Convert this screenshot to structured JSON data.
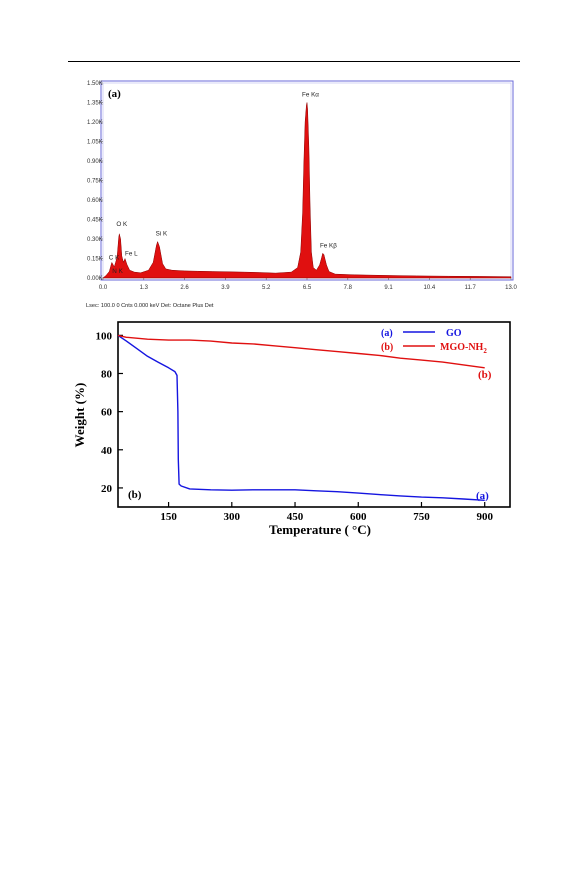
{
  "chart_data": [
    {
      "type": "area",
      "panel_label": "(a)",
      "title": "",
      "xlabel": "",
      "ylabel": "",
      "x_ticks": [
        "0.0",
        "1.3",
        "2.6",
        "3.9",
        "5.2",
        "6.5",
        "7.8",
        "9.1",
        "10.4",
        "11.7",
        "13.0"
      ],
      "y_ticks": [
        "0.00K",
        "0.15K",
        "0.30K",
        "0.45K",
        "0.60K",
        "0.75K",
        "0.90K",
        "1.05K",
        "1.20K",
        "1.35K",
        "1.50K"
      ],
      "xlim": [
        0,
        13.0
      ],
      "ylim": [
        0,
        1500
      ],
      "series": [
        {
          "color": "#e01010",
          "x": [
            0.0,
            0.1,
            0.2,
            0.28,
            0.36,
            0.45,
            0.5,
            0.52,
            0.56,
            0.6,
            0.65,
            0.7,
            0.76,
            0.85,
            1.0,
            1.2,
            1.45,
            1.6,
            1.7,
            1.74,
            1.8,
            1.9,
            2.0,
            2.2,
            2.6,
            3.0,
            3.5,
            4.0,
            4.5,
            5.0,
            5.5,
            6.0,
            6.2,
            6.3,
            6.36,
            6.4,
            6.44,
            6.48,
            6.5,
            6.52,
            6.56,
            6.6,
            6.64,
            6.7,
            6.8,
            6.9,
            6.96,
            7.0,
            7.04,
            7.08,
            7.12,
            7.2,
            7.4,
            8.0,
            9.0,
            10.0,
            11.0,
            12.0,
            13.0
          ],
          "y": [
            0,
            20,
            50,
            120,
            85,
            160,
            310,
            340,
            300,
            170,
            120,
            150,
            105,
            60,
            45,
            40,
            60,
            120,
            250,
            280,
            240,
            110,
            70,
            60,
            55,
            52,
            50,
            48,
            45,
            42,
            38,
            45,
            80,
            200,
            500,
            900,
            1200,
            1330,
            1350,
            1300,
            1000,
            550,
            200,
            80,
            60,
            100,
            150,
            190,
            180,
            140,
            100,
            50,
            30,
            25,
            20,
            16,
            14,
            12,
            10
          ]
        }
      ],
      "annotations": [
        {
          "text": "O  K",
          "x": 0.52,
          "y": 340
        },
        {
          "text": "C  K",
          "x": 0.28,
          "y": 120
        },
        {
          "text": "Fe L",
          "x": 0.7,
          "y": 150
        },
        {
          "text": "N  K",
          "x": 0.36,
          "y": 85
        },
        {
          "text": "Si K",
          "x": 1.74,
          "y": 280
        },
        {
          "text": "Fe Kα",
          "x": 6.5,
          "y": 1350
        },
        {
          "text": "Fe Kβ",
          "x": 7.04,
          "y": 190
        }
      ],
      "footer": "Lsec: 100.0 0 Cnts  0.000 keV Det: Octane Plus Det"
    },
    {
      "type": "line",
      "panel_label": "(b)",
      "title": "",
      "xlabel": "Temperature ( °C)",
      "ylabel": "Weight (%)",
      "x_ticks": [
        150,
        300,
        450,
        600,
        750,
        900
      ],
      "y_ticks": [
        20,
        40,
        60,
        80,
        100
      ],
      "xlim": [
        30,
        960
      ],
      "ylim": [
        10,
        107
      ],
      "series": [
        {
          "name": "GO",
          "marker": "(a)",
          "color": "#1515e0",
          "x": [
            30,
            50,
            75,
            100,
            125,
            150,
            165,
            170,
            172,
            173,
            175,
            180,
            200,
            250,
            300,
            350,
            400,
            450,
            500,
            550,
            600,
            650,
            700,
            750,
            800,
            850,
            900
          ],
          "y": [
            100,
            97,
            93,
            89,
            86,
            83,
            81,
            79,
            60,
            35,
            22,
            21,
            19.5,
            19,
            18.8,
            19,
            19,
            19,
            18.5,
            18,
            17.3,
            16.5,
            15.8,
            15.2,
            14.8,
            14.2,
            13.5
          ]
        },
        {
          "name": "MGO-NH",
          "name_subscript": "2",
          "marker": "(b)",
          "color": "#e01010",
          "x": [
            30,
            50,
            100,
            150,
            200,
            250,
            300,
            350,
            400,
            450,
            500,
            550,
            600,
            650,
            700,
            750,
            800,
            850,
            900
          ],
          "y": [
            100,
            99,
            98,
            97.5,
            97.5,
            97,
            96,
            95.5,
            94.5,
            93.5,
            92.5,
            91.5,
            90.5,
            89.5,
            88,
            87,
            86,
            84.5,
            83
          ]
        }
      ]
    }
  ]
}
